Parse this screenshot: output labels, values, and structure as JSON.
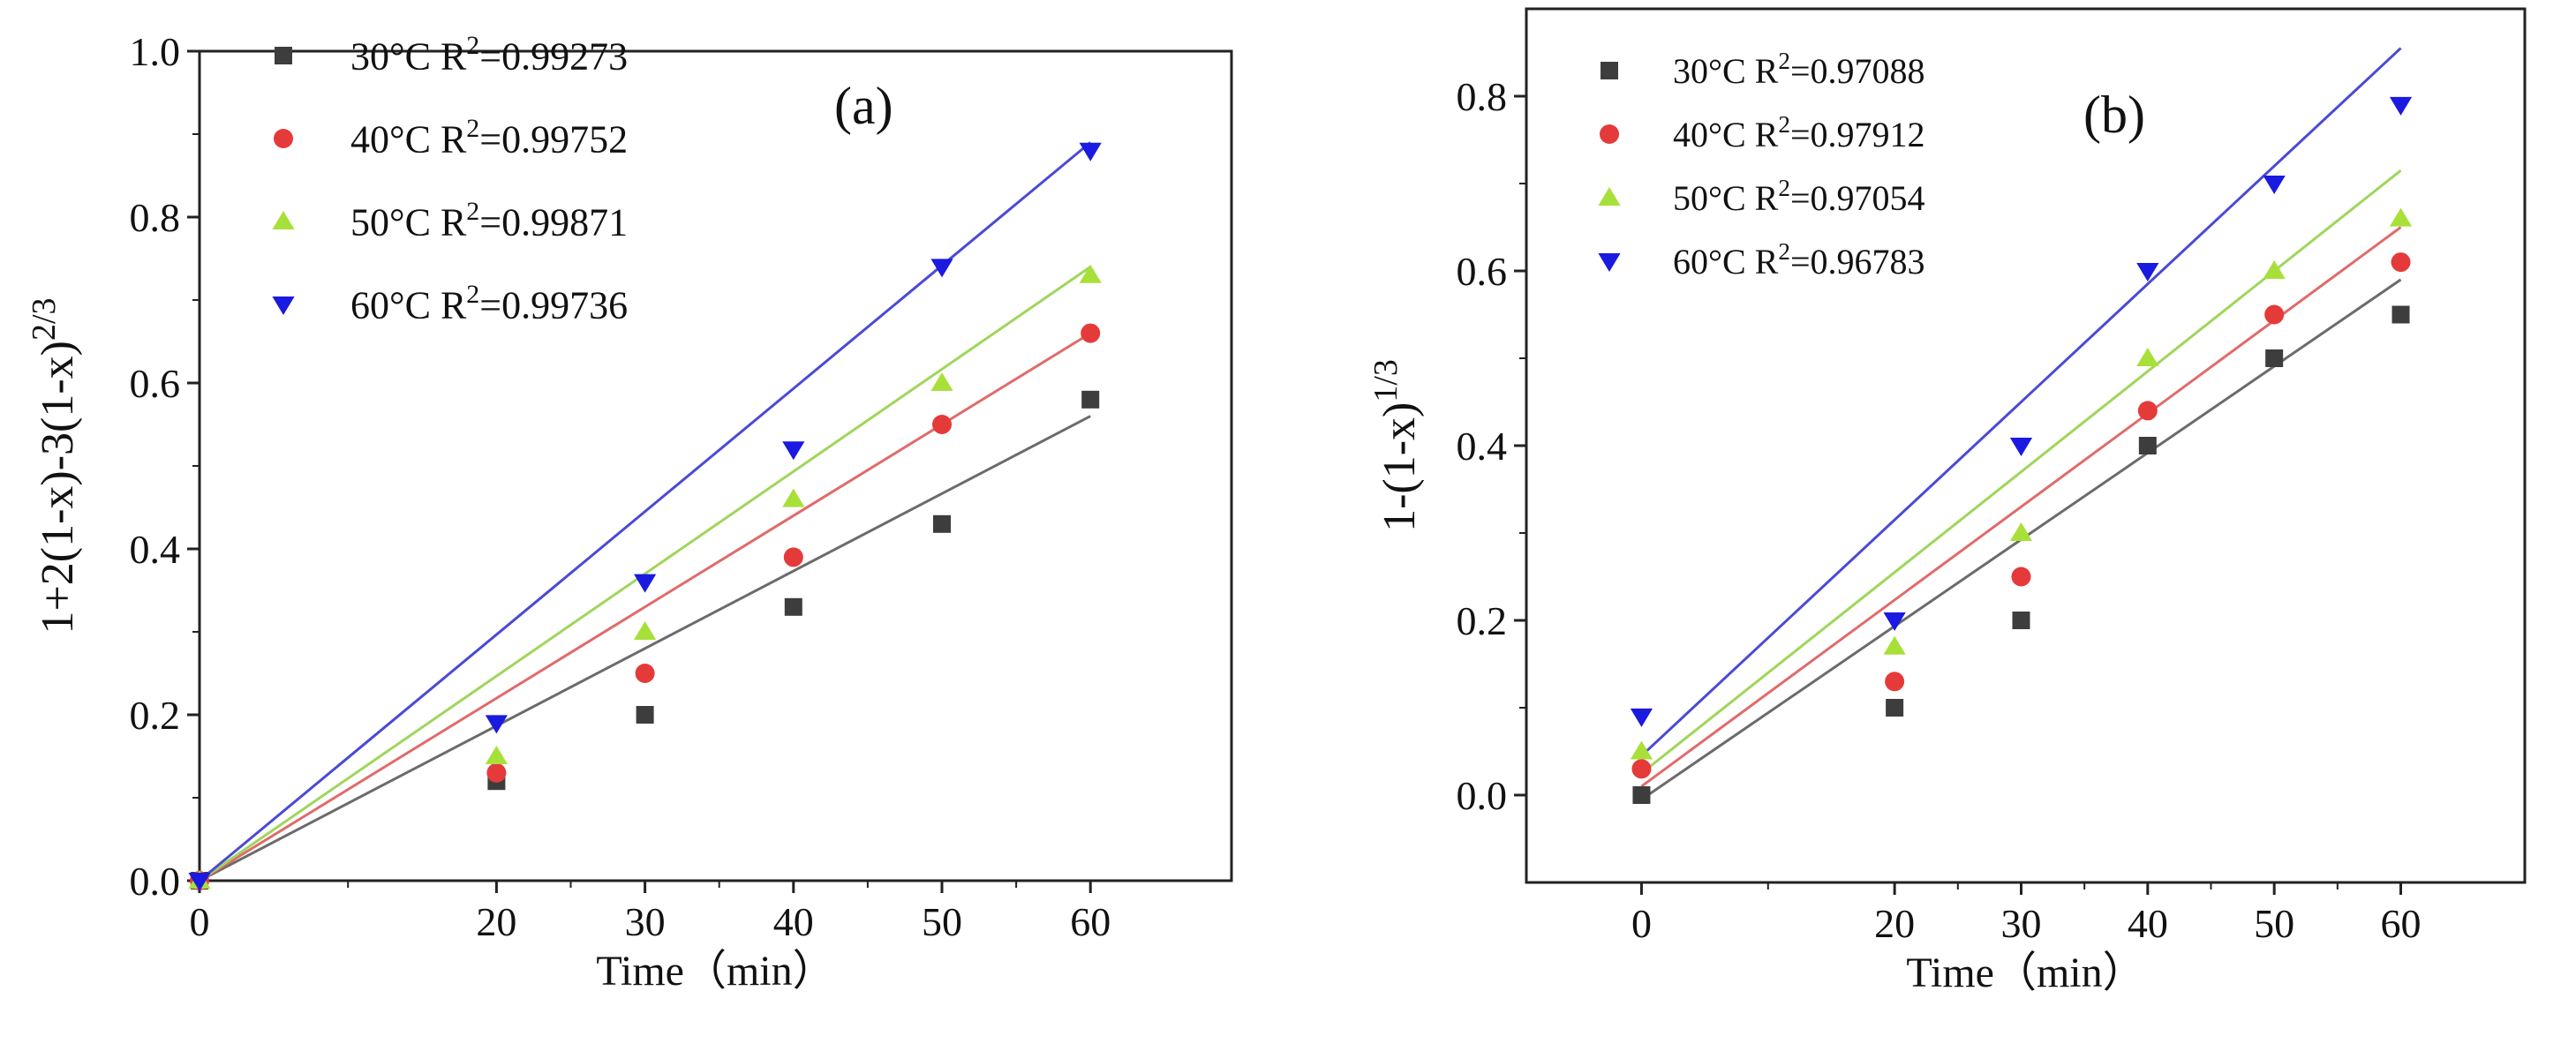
{
  "chart_data": [
    {
      "type": "scatter",
      "panel_label": "(a)",
      "xlabel": "Time（min）",
      "ylabel_main": "1+2(1-x)-3(1-x)",
      "ylabel_sup": "2/3",
      "xlim": [
        0,
        69.5
      ],
      "ylim": [
        0,
        1.0
      ],
      "xticks": [
        0,
        20,
        30,
        40,
        50,
        60
      ],
      "xtick_labels": [
        "0",
        "20",
        "30",
        "40",
        "50",
        "60"
      ],
      "yticks": [
        0,
        0.2,
        0.4,
        0.6,
        0.8,
        1.0
      ],
      "ytick_labels": [
        "0.0",
        "0.2",
        "0.4",
        "0.6",
        "0.8",
        "1.0"
      ],
      "x": [
        0,
        20,
        30,
        40,
        50,
        60
      ],
      "legend_position": "top-left",
      "series": [
        {
          "name": "30°C",
          "legend_prefix": "30°C R",
          "legend_sup": "2",
          "legend_r2": "=0.99273",
          "marker": "square",
          "color": "#3d3d3d",
          "line_color": "#6b6b6b",
          "values": [
            0,
            0.12,
            0.2,
            0.33,
            0.43,
            0.58
          ],
          "fit": [
            0,
            0.56
          ]
        },
        {
          "name": "40°C",
          "legend_prefix": "40°C R",
          "legend_sup": "2",
          "legend_r2": "=0.99752",
          "marker": "circle",
          "color": "#e53a3a",
          "line_color": "#e06b6b",
          "values": [
            0,
            0.13,
            0.25,
            0.39,
            0.55,
            0.66
          ],
          "fit": [
            0,
            0.66
          ]
        },
        {
          "name": "50°C",
          "legend_prefix": "50°C R",
          "legend_sup": "2",
          "legend_r2": "=0.99871",
          "marker": "triangle-up",
          "color": "#a8e03a",
          "line_color": "#9fd65a",
          "values": [
            0,
            0.15,
            0.3,
            0.46,
            0.6,
            0.73
          ],
          "fit": [
            0,
            0.74
          ]
        },
        {
          "name": "60°C",
          "legend_prefix": "60°C R",
          "legend_sup": "2",
          "legend_r2": "=0.99736",
          "marker": "triangle-down",
          "color": "#1a1ae0",
          "line_color": "#4a4ad6",
          "values": [
            0,
            0.19,
            0.36,
            0.52,
            0.74,
            0.88
          ],
          "fit": [
            0,
            0.89
          ]
        }
      ]
    },
    {
      "type": "scatter",
      "panel_label": "(b)",
      "xlabel": "Time（min）",
      "ylabel_main": "1-(1-x)",
      "ylabel_sup": "1/3",
      "xlim": [
        -9.1,
        69.8
      ],
      "ylim": [
        -0.1,
        0.9
      ],
      "xticks": [
        0,
        20,
        30,
        40,
        50,
        60
      ],
      "xtick_labels": [
        "0",
        "20",
        "30",
        "40",
        "50",
        "60"
      ],
      "yticks": [
        0,
        0.2,
        0.4,
        0.6,
        0.8
      ],
      "ytick_labels": [
        "0.0",
        "0.2",
        "0.4",
        "0.6",
        "0.8"
      ],
      "x": [
        0,
        20,
        30,
        40,
        50,
        60
      ],
      "legend_position": "top-left",
      "series": [
        {
          "name": "30°C",
          "legend_prefix": "30°C R",
          "legend_sup": "2",
          "legend_r2": "=0.97088",
          "marker": "square",
          "color": "#3d3d3d",
          "line_color": "#6b6b6b",
          "values": [
            0,
            0.1,
            0.2,
            0.4,
            0.5,
            0.55
          ],
          "fit": [
            -0.005,
            0.59
          ]
        },
        {
          "name": "40°C",
          "legend_prefix": "40°C R",
          "legend_sup": "2",
          "legend_r2": "=0.97912",
          "marker": "circle",
          "color": "#e53a3a",
          "line_color": "#e06b6b",
          "values": [
            0.03,
            0.13,
            0.25,
            0.44,
            0.55,
            0.61
          ],
          "fit": [
            0.01,
            0.65
          ]
        },
        {
          "name": "50°C",
          "legend_prefix": "50°C R",
          "legend_sup": "2",
          "legend_r2": "=0.97054",
          "marker": "triangle-up",
          "color": "#a8e03a",
          "line_color": "#9fd65a",
          "values": [
            0.05,
            0.17,
            0.3,
            0.5,
            0.6,
            0.66
          ],
          "fit": [
            0.025,
            0.715
          ]
        },
        {
          "name": "60°C",
          "legend_prefix": "60°C R",
          "legend_sup": "2",
          "legend_r2": "=0.96783",
          "marker": "triangle-down",
          "color": "#1a1ae0",
          "line_color": "#4a4ad6",
          "values": [
            0.09,
            0.2,
            0.4,
            0.6,
            0.7,
            0.79
          ],
          "fit": [
            0.045,
            0.855
          ]
        }
      ]
    }
  ]
}
